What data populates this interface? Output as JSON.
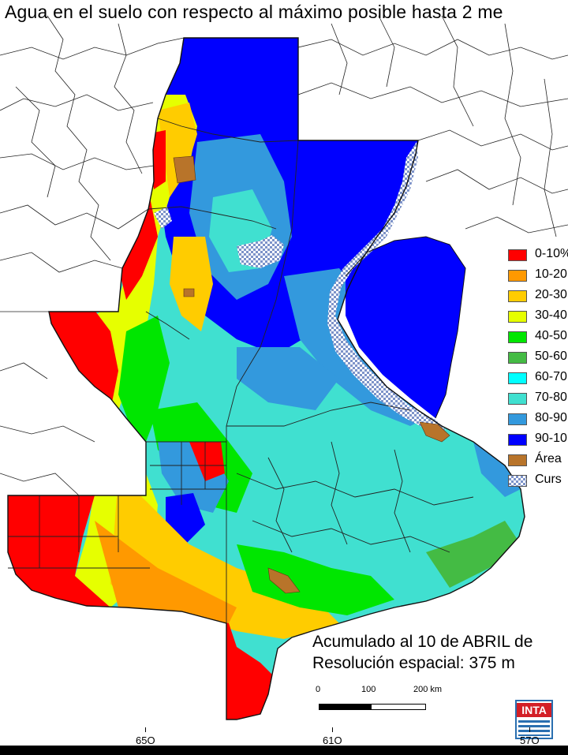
{
  "title": "Agua en el suelo con respecto al máximo posible hasta 2 me",
  "legend": [
    {
      "label": "0-10%",
      "color": "#ff0000"
    },
    {
      "label": "10-20",
      "color": "#ff9900"
    },
    {
      "label": "20-30",
      "color": "#ffcc00"
    },
    {
      "label": "30-40",
      "color": "#e6ff00"
    },
    {
      "label": "40-50",
      "color": "#00e600"
    },
    {
      "label": "50-60",
      "color": "#44bb44"
    },
    {
      "label": "60-70",
      "color": "#00ffff"
    },
    {
      "label": "70-80",
      "color": "#40e0d0"
    },
    {
      "label": "80-90",
      "color": "#3399dd"
    },
    {
      "label": "90-10",
      "color": "#0000ff"
    },
    {
      "label": "Área",
      "color": "#b8742a"
    },
    {
      "label": "Curs",
      "color": "#b0c4de",
      "pattern": "checker"
    }
  ],
  "info": {
    "line1": "Acumulado al 10 de ABRIL de",
    "line2": "Resolución espacial: 375 m"
  },
  "scalebar": {
    "labels": [
      "0",
      "100",
      "200 km"
    ]
  },
  "longitudes": [
    "65O",
    "61O",
    "57O"
  ],
  "logo": {
    "text": "INTA",
    "color": "#d31f26",
    "stripe_color": "#2a6fb0"
  }
}
